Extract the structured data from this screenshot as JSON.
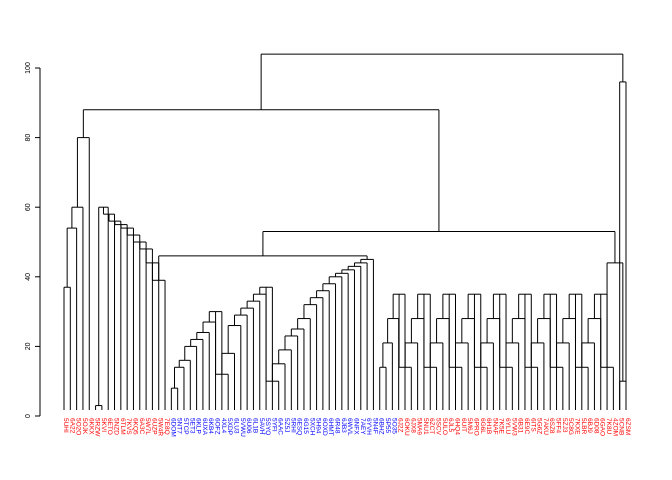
{
  "chart_data": {
    "type": "dendrogram",
    "title": "",
    "xlabel": "",
    "ylabel": "",
    "ylim": [
      0,
      105
    ],
    "yticks": [
      "0",
      "20",
      "40",
      "60",
      "80",
      "100"
    ],
    "colors": {
      "group_a": "#ff0000",
      "group_b": "#0000ff"
    },
    "leaf_labels": [
      "5UHI",
      "6A22",
      "5O2O",
      "5OJK",
      "6KKX",
      "5RZW",
      "5KVI",
      "6ETO",
      "5NZD",
      "6TLM",
      "7KVS",
      "6KQ5",
      "6A3C",
      "5W7L",
      "6UZP",
      "5W4R",
      "7E8Q",
      "6DOM",
      "5NT7",
      "5TCP",
      "5ET3",
      "6KLP",
      "6UXA",
      "6KB4",
      "6OFZ",
      "4XL4",
      "5XDP",
      "6LU3",
      "5VWU",
      "6U06",
      "6L1B",
      "5AVH",
      "5SYQ",
      "5YFI",
      "6AAC",
      "5Z5J",
      "5RHI",
      "6ESQ",
      "6G15",
      "5XCH",
      "5H94",
      "6OXD",
      "6HMT",
      "6R48",
      "6JB3",
      "6WVL",
      "6NFX",
      "7AEY",
      "6YVH",
      "5N4F",
      "6BHZ",
      "5P55",
      "5O35",
      "6J2Z",
      "6OKU",
      "6JX8",
      "5MA9",
      "5NU1",
      "6ZCT",
      "5SCV",
      "5ULO",
      "6JL5",
      "6HQ4",
      "6UIT",
      "5M6J",
      "6PRO",
      "6G6L",
      "6H1B",
      "5NAF",
      "7K5E",
      "6YLU",
      "5VW3",
      "6B31",
      "6E9C",
      "6ITS",
      "5G6Z",
      "7AKU",
      "6SZ8",
      "5FF4",
      "5ZJ3",
      "5C8G",
      "7KXE",
      "5LBR",
      "6BJ9",
      "6D08",
      "6GAO",
      "7K8U",
      "4ZOM",
      "5CNB",
      "6ZSM"
    ]
  }
}
